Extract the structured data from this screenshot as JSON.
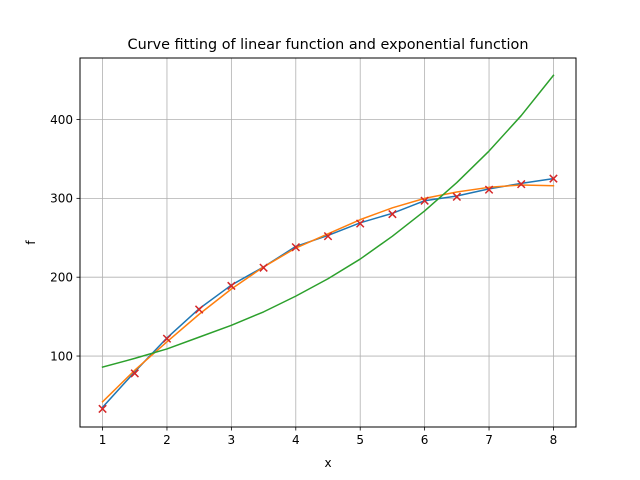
{
  "chart_data": {
    "type": "line",
    "title": "Curve fitting of linear function and exponential function",
    "xlabel": "x",
    "ylabel": "f",
    "xlim": [
      0.65,
      8.35
    ],
    "ylim": [
      10,
      478
    ],
    "grid": true,
    "xticks": [
      1,
      2,
      3,
      4,
      5,
      6,
      7,
      8
    ],
    "yticks": [
      100,
      200,
      300,
      400
    ],
    "x": [
      1,
      1.5,
      2,
      2.5,
      3,
      3.5,
      4,
      4.5,
      5,
      5.5,
      6,
      6.5,
      7,
      7.5,
      8
    ],
    "series": [
      {
        "style": "markers",
        "marker": "x",
        "color": "#d62728",
        "values": [
          33,
          78,
          122,
          159,
          189,
          212,
          238,
          252,
          268,
          280,
          297,
          302,
          311,
          318,
          325
        ]
      },
      {
        "style": "line",
        "color": "#1f77b4",
        "values": [
          35,
          80,
          123,
          160,
          190,
          213,
          239,
          253,
          269,
          281,
          297,
          303,
          312,
          319,
          325
        ]
      },
      {
        "style": "line",
        "color": "#ff7f0e",
        "values": [
          42,
          82,
          118,
          153,
          185,
          213,
          237,
          255,
          273,
          288,
          300,
          308,
          314,
          317,
          316
        ]
      },
      {
        "style": "line",
        "color": "#2ca02c",
        "values": [
          86,
          97,
          109,
          124,
          139,
          156,
          176,
          198,
          223,
          252,
          284,
          320,
          360,
          405,
          456
        ]
      }
    ]
  }
}
